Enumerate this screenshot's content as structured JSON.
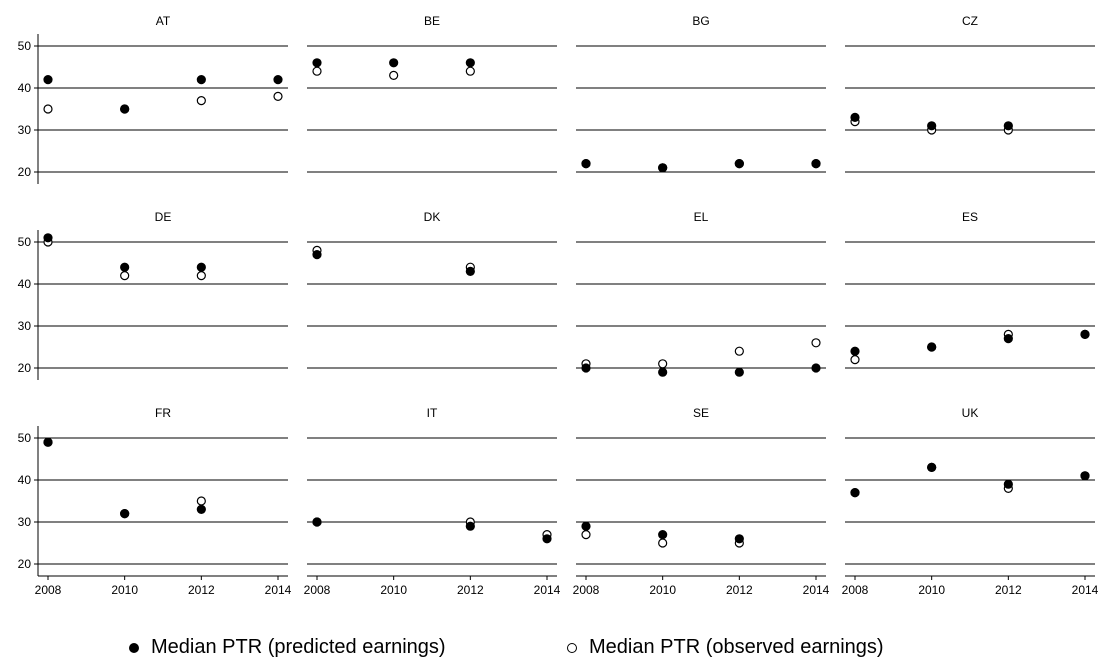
{
  "chart_data": {
    "type": "scatter",
    "x_ticks": [
      2008,
      2010,
      2012,
      2014
    ],
    "xlim": [
      2008,
      2014
    ],
    "y_ticks": [
      20,
      30,
      40,
      50
    ],
    "ylim": [
      20,
      50
    ],
    "grid": true,
    "legend_placement": "bottom",
    "series": [
      {
        "name": "Median PTR (predicted earnings)",
        "marker": "filled",
        "color": "#000000"
      },
      {
        "name": "Median PTR (observed earnings)",
        "marker": "hollow",
        "color": "#000000"
      }
    ],
    "panels": [
      {
        "title": "AT",
        "x": [
          2008,
          2010,
          2012,
          2014
        ],
        "predicted": [
          42,
          35,
          42,
          42
        ],
        "observed": [
          35,
          35,
          37,
          38
        ]
      },
      {
        "title": "BE",
        "x": [
          2008,
          2010,
          2012
        ],
        "predicted": [
          46,
          46,
          46
        ],
        "observed": [
          44,
          43,
          44
        ]
      },
      {
        "title": "BG",
        "x": [
          2008,
          2010,
          2012,
          2014
        ],
        "predicted": [
          22,
          21,
          22,
          22
        ],
        "observed": [
          22,
          21,
          22,
          22
        ]
      },
      {
        "title": "CZ",
        "x": [
          2008,
          2010,
          2012
        ],
        "predicted": [
          33,
          31,
          31
        ],
        "observed": [
          32,
          30,
          30
        ]
      },
      {
        "title": "DE",
        "x": [
          2008,
          2010,
          2012
        ],
        "predicted": [
          51,
          44,
          44
        ],
        "observed": [
          50,
          42,
          42
        ]
      },
      {
        "title": "DK",
        "x": [
          2008,
          2012
        ],
        "predicted": [
          47,
          43
        ],
        "observed": [
          48,
          44
        ]
      },
      {
        "title": "EL",
        "x": [
          2008,
          2010,
          2012,
          2014
        ],
        "predicted": [
          20,
          19,
          19,
          20
        ],
        "observed": [
          21,
          21,
          24,
          26
        ]
      },
      {
        "title": "ES",
        "x": [
          2008,
          2010,
          2012,
          2014
        ],
        "predicted": [
          24,
          25,
          27,
          28
        ],
        "observed": [
          22,
          25,
          28,
          28
        ]
      },
      {
        "title": "FR",
        "x": [
          2008,
          2010,
          2012
        ],
        "predicted": [
          49,
          32,
          33
        ],
        "observed": [
          49,
          32,
          35
        ]
      },
      {
        "title": "IT",
        "x": [
          2008,
          2012,
          2014
        ],
        "predicted": [
          30,
          29,
          26
        ],
        "observed": [
          30,
          30,
          27
        ]
      },
      {
        "title": "SE",
        "x": [
          2008,
          2010,
          2012
        ],
        "predicted": [
          29,
          27,
          26
        ],
        "observed": [
          27,
          25,
          25
        ]
      },
      {
        "title": "UK",
        "x": [
          2008,
          2010,
          2012,
          2014
        ],
        "predicted": [
          37,
          43,
          39,
          41
        ],
        "observed": [
          37,
          43,
          38,
          41
        ]
      }
    ]
  },
  "legend": {
    "predicted_label": "Median PTR (predicted earnings)",
    "observed_label": "Median PTR (observed earnings)"
  }
}
